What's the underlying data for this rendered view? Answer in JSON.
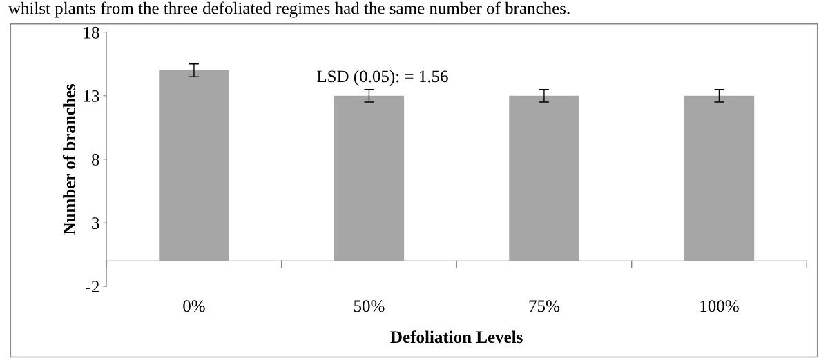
{
  "chart_data": {
    "type": "bar",
    "categories": [
      "0%",
      "50%",
      "75%",
      "100%"
    ],
    "values": [
      15,
      13,
      13,
      13
    ],
    "errors": [
      0.5,
      0.5,
      0.5,
      0.5
    ],
    "color": "#a6a6a6",
    "xlabel": "Defoliation Levels",
    "ylabel": "Number of branches",
    "ylim": [
      -2,
      18
    ],
    "yticks": [
      -2,
      3,
      8,
      13,
      18
    ],
    "grid": false,
    "annotations": [
      "whilst plants from the three defoliated regimes had the same number of branches.",
      "LSD (0.05): = 1.56"
    ]
  }
}
